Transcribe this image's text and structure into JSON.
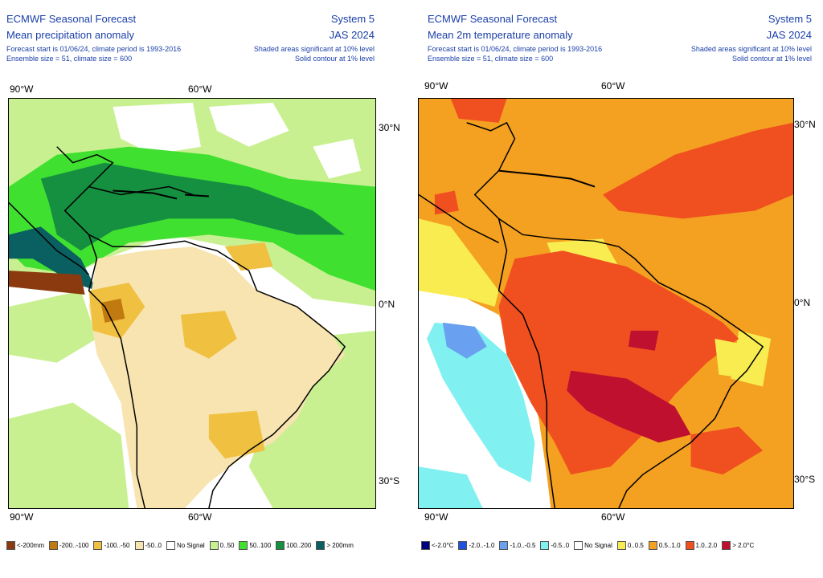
{
  "left": {
    "title": "ECMWF Seasonal Forecast",
    "subtitle": "Mean precipitation anomaly",
    "meta1": "Forecast start is 01/06/24, climate period is 1993-2016",
    "meta2": "Ensemble size = 51, climate size = 600",
    "system": "System 5",
    "season": "JAS 2024",
    "sig1": "Shaded areas significant at 10% level",
    "sig2": "Solid contour at 1% level",
    "lon_top": [
      "90°W",
      "60°W"
    ],
    "lon_bottom": [
      "90°W",
      "60°W"
    ],
    "lat": [
      "30°N",
      "0°N",
      "30°S"
    ],
    "legend": [
      {
        "label": "<-200mm",
        "color": "#8b3a0f"
      },
      {
        "label": "-200..-100",
        "color": "#c07a10"
      },
      {
        "label": "-100..-50",
        "color": "#f0c040"
      },
      {
        "label": "-50..0",
        "color": "#f8e4b0"
      },
      {
        "label": "No Signal",
        "color": "#ffffff"
      },
      {
        "label": "0..50",
        "color": "#c8f090"
      },
      {
        "label": "50..100",
        "color": "#40e030"
      },
      {
        "label": "100..200",
        "color": "#159040"
      },
      {
        "label": "> 200mm",
        "color": "#0a6060"
      }
    ]
  },
  "right": {
    "title": "ECMWF Seasonal Forecast",
    "subtitle": "Mean 2m temperature anomaly",
    "meta1": "Forecast start is 01/06/24, climate period is 1993-2016",
    "meta2": "Ensemble size = 51, climate size = 600",
    "system": "System 5",
    "season": "JAS 2024",
    "sig1": "Shaded areas significant at 10% level",
    "sig2": "Solid contour at 1% level",
    "lon_top": [
      "90°W",
      "60°W"
    ],
    "lon_bottom": [
      "90°W",
      "60°W"
    ],
    "lat": [
      "30°N",
      "0°N",
      "30°S"
    ],
    "legend": [
      {
        "label": "<-2.0°C",
        "color": "#000080"
      },
      {
        "label": "-2.0..-1.0",
        "color": "#2050e0"
      },
      {
        "label": "-1.0..-0.5",
        "color": "#6aa0f0"
      },
      {
        "label": "-0.5..0",
        "color": "#80f0f0"
      },
      {
        "label": "No Signal",
        "color": "#ffffff"
      },
      {
        "label": "0..0.5",
        "color": "#f8ec50"
      },
      {
        "label": "0.5..1.0",
        "color": "#f4a020"
      },
      {
        "label": "1.0..2.0",
        "color": "#f05020"
      },
      {
        "label": "> 2.0°C",
        "color": "#c01030"
      }
    ]
  }
}
